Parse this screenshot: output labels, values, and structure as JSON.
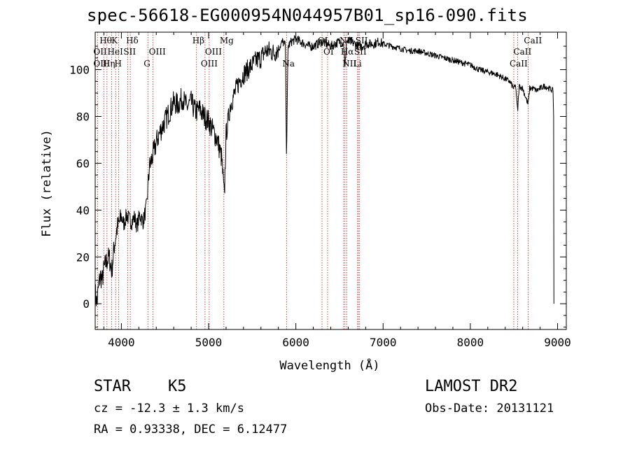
{
  "title": "spec-56618-EG000954N044957B01_sp16-090.fits",
  "object_class": "STAR",
  "subclass": "K5",
  "survey": "LAMOST DR2",
  "redshift_text": "cz = -12.3 ± 1.3 km/s",
  "obs_date_text": "Obs-Date: 20131121",
  "coords_text": "RA =   0.93338, DEC =   6.12477",
  "chart_data": {
    "type": "line",
    "title": "spec-56618-EG000954N044957B01_sp16-090.fits",
    "xlabel": "Wavelength (Å)",
    "ylabel": "Flux (relative)",
    "xlim": [
      3700,
      9100
    ],
    "ylim": [
      -11,
      116
    ],
    "xticks": [
      4000,
      5000,
      6000,
      7000,
      8000,
      9000
    ],
    "yticks": [
      0,
      20,
      40,
      60,
      80,
      100
    ],
    "grid": false,
    "series": [
      {
        "color": "#000000",
        "x": [
          3700,
          3720,
          3740,
          3760,
          3780,
          3800,
          3830,
          3860,
          3890,
          3920,
          3950,
          3980,
          4000,
          4030,
          4060,
          4090,
          4120,
          4150,
          4180,
          4210,
          4250,
          4290,
          4320,
          4350,
          4380,
          4410,
          4450,
          4500,
          4550,
          4600,
          4650,
          4700,
          4750,
          4800,
          4850,
          4900,
          4950,
          5000,
          5050,
          5100,
          5150,
          5180,
          5200,
          5250,
          5300,
          5350,
          5400,
          5450,
          5500,
          5550,
          5600,
          5650,
          5700,
          5750,
          5800,
          5850,
          5880,
          5893,
          5910,
          5950,
          6000,
          6050,
          6100,
          6150,
          6200,
          6250,
          6300,
          6350,
          6400,
          6450,
          6500,
          6550,
          6563,
          6580,
          6620,
          6680,
          6720,
          6760,
          6800,
          6850,
          6900,
          6950,
          7000,
          7100,
          7200,
          7300,
          7400,
          7500,
          7600,
          7700,
          7800,
          7900,
          8000,
          8100,
          8200,
          8300,
          8400,
          8450,
          8498,
          8520,
          8542,
          8560,
          8600,
          8662,
          8680,
          8720,
          8760,
          8800,
          8850,
          8900,
          8950
        ],
        "y": [
          5,
          0,
          8,
          12,
          10,
          15,
          18,
          20,
          14,
          25,
          32,
          35,
          37,
          34,
          38,
          36,
          35,
          37,
          33,
          38,
          35,
          42,
          58,
          62,
          66,
          70,
          74,
          78,
          82,
          86,
          85,
          88,
          84,
          86,
          82,
          83,
          80,
          78,
          74,
          70,
          62,
          45,
          72,
          85,
          90,
          95,
          98,
          100,
          102,
          104,
          105,
          108,
          108,
          107,
          109,
          112,
          110,
          62,
          110,
          112,
          113,
          112,
          111,
          110,
          110,
          111,
          112,
          111,
          110,
          111,
          112,
          111,
          100,
          112,
          112,
          111,
          110,
          110,
          111,
          111,
          111,
          112,
          111,
          110,
          109,
          108,
          108,
          107,
          106,
          105,
          104,
          103,
          102,
          100,
          99,
          98,
          96,
          95,
          92,
          93,
          82,
          93,
          92,
          85,
          92,
          92,
          91,
          92,
          93,
          92,
          91
        ]
      }
    ],
    "annotations": [
      {
        "label": "Hθ",
        "x": 3798,
        "row": 1
      },
      {
        "label": "OII",
        "x": 3727,
        "row": 2
      },
      {
        "label": "OIII",
        "x": 3727,
        "row": 3
      },
      {
        "label": "K",
        "x": 3934,
        "row": 1
      },
      {
        "label": "HeI",
        "x": 3889,
        "row": 2
      },
      {
        "label": "Hη",
        "x": 3835,
        "row": 3
      },
      {
        "label": "Hδ",
        "x": 4102,
        "row": 1
      },
      {
        "label": "SII",
        "x": 4072,
        "row": 2
      },
      {
        "label": "H",
        "x": 3969,
        "row": 3
      },
      {
        "label": "OIII",
        "x": 4363,
        "row": 2
      },
      {
        "label": "G",
        "x": 4304,
        "row": 3
      },
      {
        "label": "Hβ",
        "x": 4861,
        "row": 1
      },
      {
        "label": "OIII",
        "x": 5007,
        "row": 2
      },
      {
        "label": "OIII",
        "x": 4959,
        "row": 3
      },
      {
        "label": "Mg",
        "x": 5175,
        "row": 1
      },
      {
        "label": "Na",
        "x": 5893,
        "row": 3
      },
      {
        "label": "OI",
        "x": 6300,
        "row": 1
      },
      {
        "label": "OI",
        "x": 6364,
        "row": 2
      },
      {
        "label": "NII",
        "x": 6548,
        "row": 1
      },
      {
        "label": "Hα",
        "x": 6563,
        "row": 2
      },
      {
        "label": "NII",
        "x": 6583,
        "row": 3
      },
      {
        "label": "SII",
        "x": 6716,
        "row": 2
      },
      {
        "label": "Li",
        "x": 6708,
        "row": 3
      },
      {
        "label": "SII",
        "x": 6731,
        "row": 1
      },
      {
        "label": "CaII",
        "x": 8662,
        "row": 1
      },
      {
        "label": "CaII",
        "x": 8542,
        "row": 2
      },
      {
        "label": "CaII",
        "x": 8498,
        "row": 3
      }
    ],
    "line_markers": [
      3727,
      3798,
      3835,
      3889,
      3934,
      3969,
      4072,
      4102,
      4304,
      4363,
      4861,
      4959,
      5007,
      5175,
      5893,
      6300,
      6364,
      6548,
      6563,
      6583,
      6708,
      6716,
      6731,
      8498,
      8542,
      8662
    ]
  }
}
